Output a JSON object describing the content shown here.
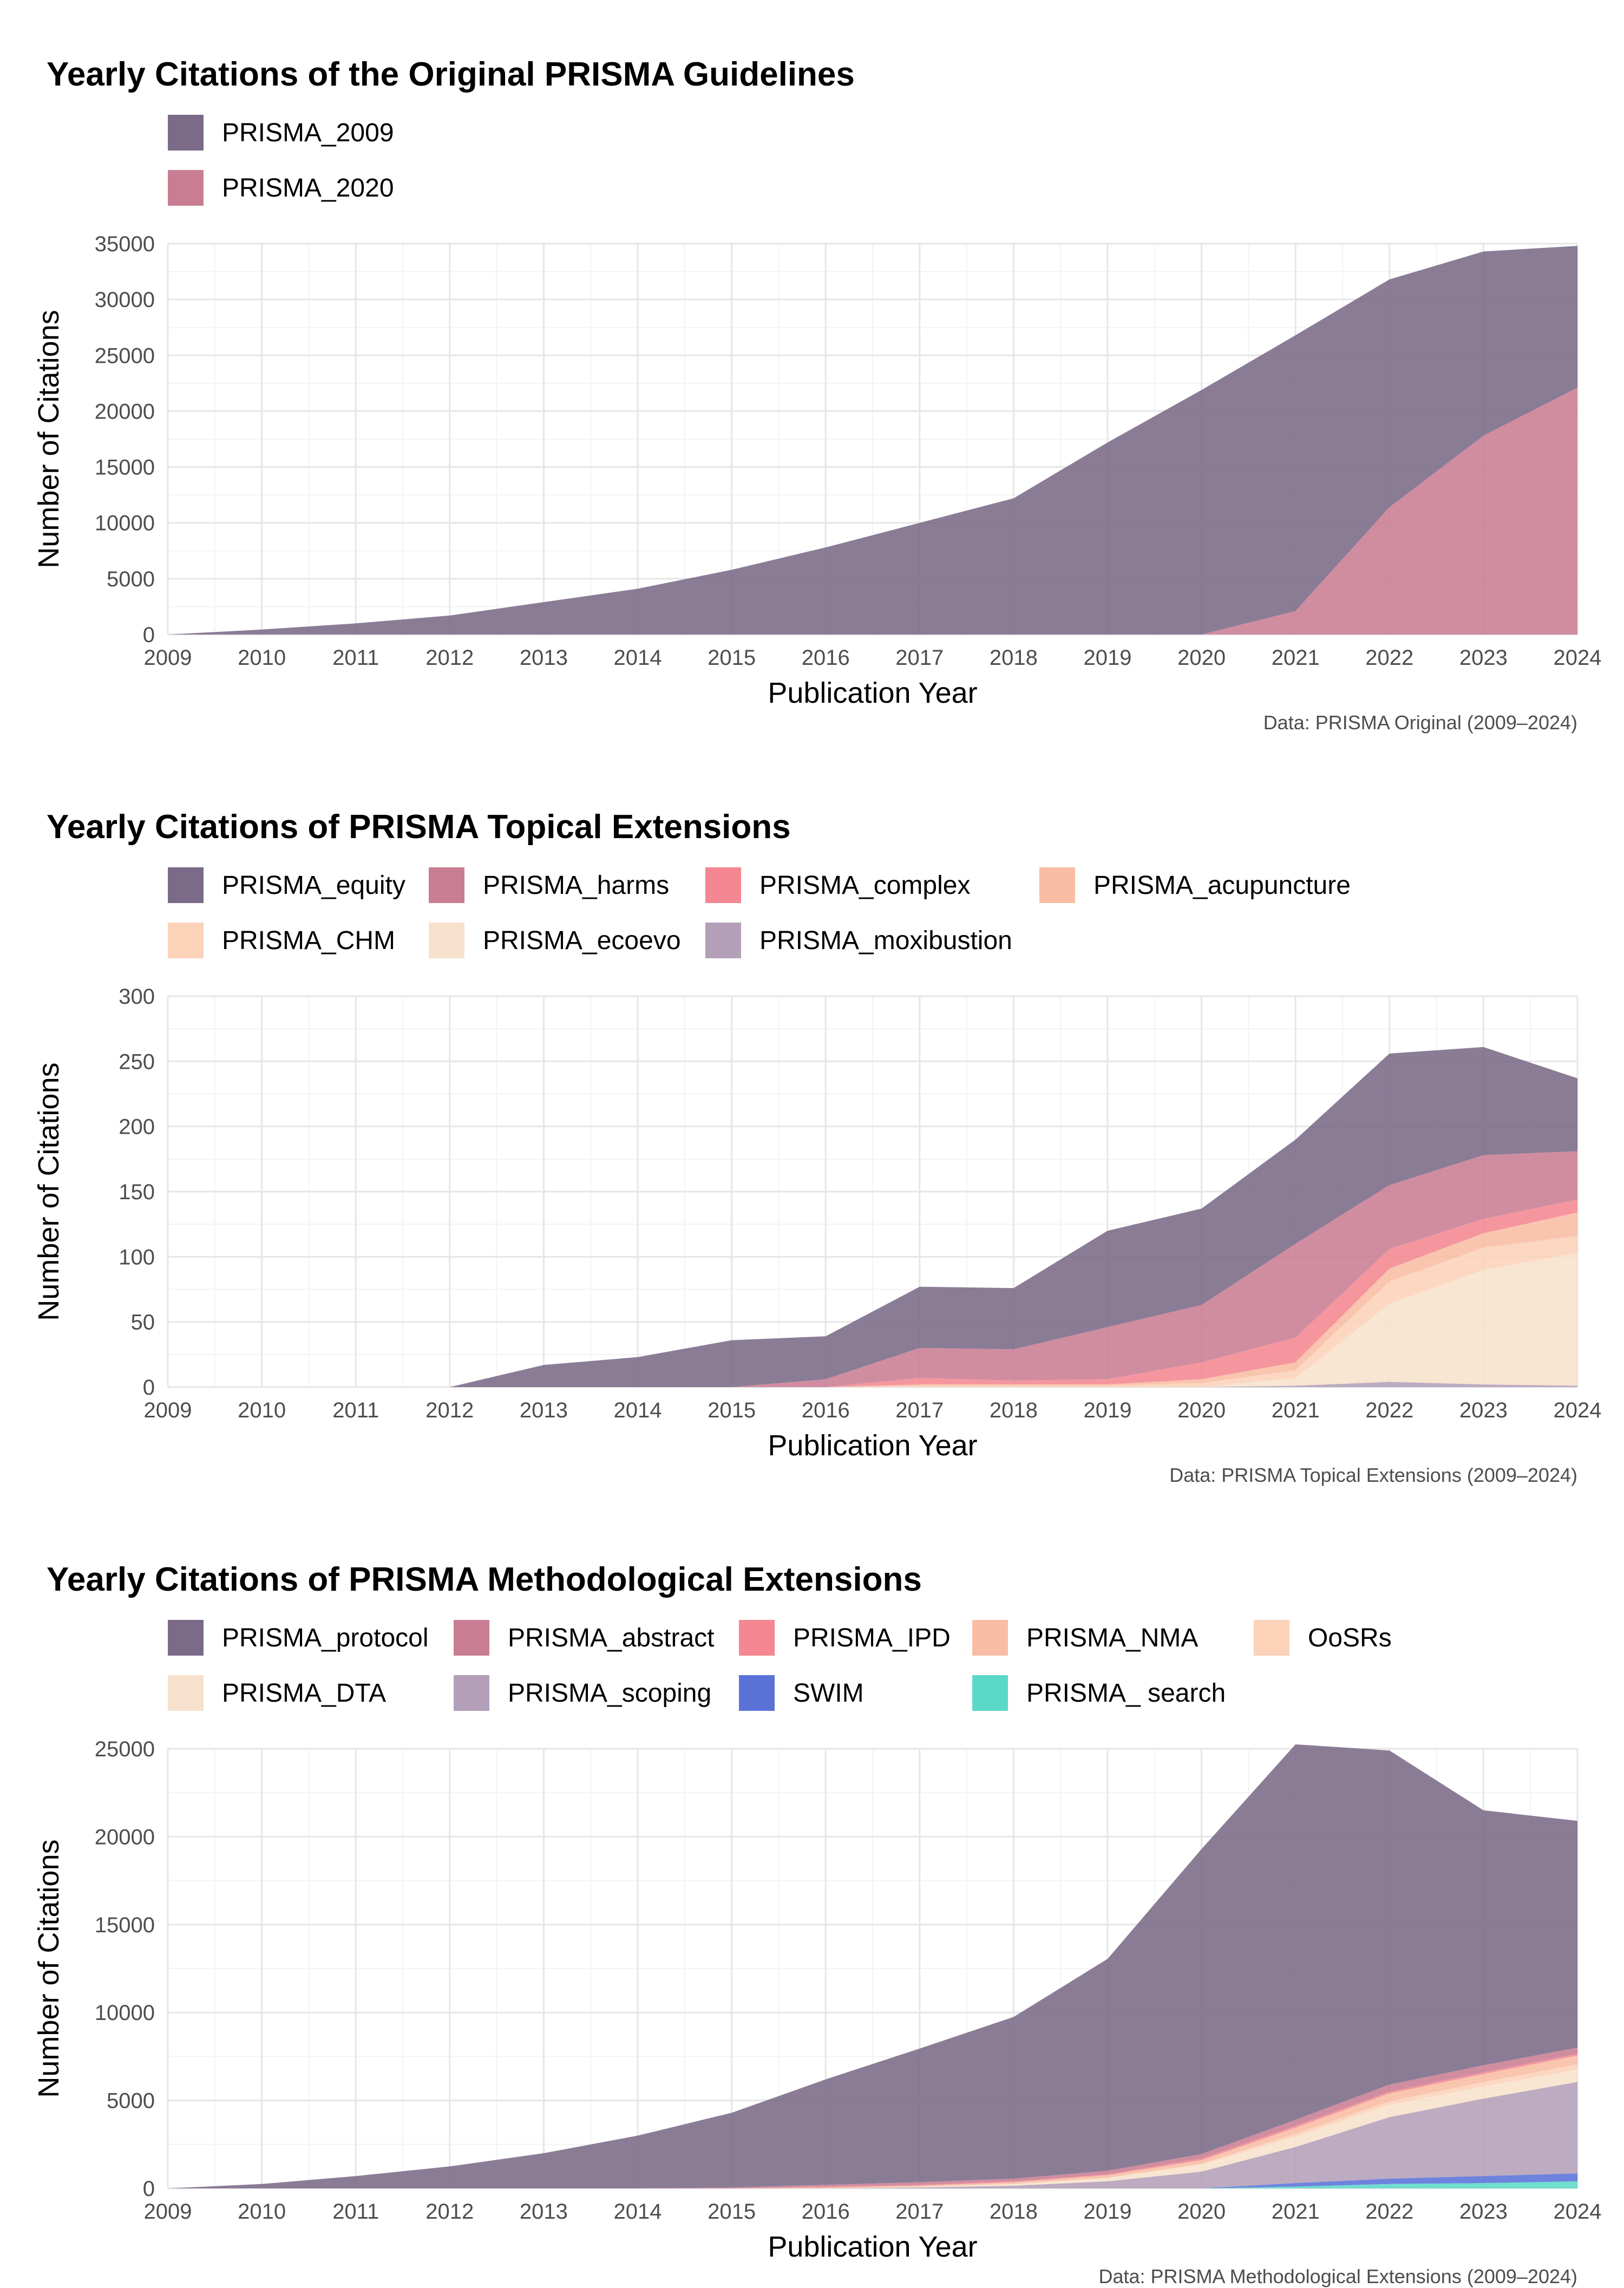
{
  "colors": {
    "PRISMA_2009": "#7b6a88",
    "PRISMA_2020": "#c97d93",
    "PRISMA_equity": "#7b6a88",
    "PRISMA_harms": "#c97d93",
    "PRISMA_complex": "#f48792",
    "PRISMA_acupuncture": "#f8bda4",
    "PRISMA_CHM": "#fcd2b9",
    "PRISMA_ecoevo": "#f7e1cc",
    "PRISMA_moxibustion": "#b39fb8",
    "PRISMA_protocol": "#7b6a88",
    "PRISMA_abstract": "#c97d93",
    "PRISMA_IPD": "#f48792",
    "PRISMA_NMA": "#f8bda4",
    "OoSRs": "#fcd2b9",
    "PRISMA_DTA": "#f7e1cc",
    "PRISMA_scoping": "#b39fb8",
    "SWIM": "#5a72d8",
    "PRISMA_ search": "#5cd8c8"
  },
  "chart_data": [
    {
      "type": "area",
      "stacked": true,
      "title": "Yearly Citations of the Original PRISMA Guidelines",
      "xlabel": "Publication Year",
      "ylabel": "Number of Citations",
      "caption": "Data: PRISMA Original (2009–2024)",
      "x": [
        2009,
        2010,
        2011,
        2012,
        2013,
        2014,
        2015,
        2016,
        2017,
        2018,
        2019,
        2020,
        2021,
        2022,
        2023,
        2024
      ],
      "ylim": [
        0,
        35000
      ],
      "yticks": [
        0,
        5000,
        10000,
        15000,
        20000,
        25000,
        30000,
        35000
      ],
      "legend_position": "top",
      "series": [
        {
          "name": "PRISMA_2009",
          "values": [
            0,
            450,
            1000,
            1700,
            2900,
            4100,
            5800,
            7800,
            10000,
            12200,
            17200,
            21900,
            24700,
            20400,
            16500,
            12700
          ]
        },
        {
          "name": "PRISMA_2020",
          "values": [
            0,
            0,
            0,
            0,
            0,
            0,
            0,
            0,
            0,
            0,
            0,
            0,
            2100,
            11400,
            17800,
            22100
          ]
        }
      ]
    },
    {
      "type": "area",
      "stacked": true,
      "title": "Yearly Citations of PRISMA Topical Extensions",
      "xlabel": "Publication Year",
      "ylabel": "Number of Citations",
      "caption": "Data: PRISMA Topical Extensions (2009–2024)",
      "x": [
        2009,
        2010,
        2011,
        2012,
        2013,
        2014,
        2015,
        2016,
        2017,
        2018,
        2019,
        2020,
        2021,
        2022,
        2023,
        2024
      ],
      "ylim": [
        0,
        300
      ],
      "yticks": [
        0,
        50,
        100,
        150,
        200,
        250,
        300
      ],
      "legend_position": "top",
      "series": [
        {
          "name": "PRISMA_equity",
          "values": [
            0,
            0,
            0,
            0,
            17,
            23,
            36,
            33,
            47,
            47,
            74,
            74,
            80,
            101,
            83,
            56
          ]
        },
        {
          "name": "PRISMA_harms",
          "values": [
            0,
            0,
            0,
            0,
            0,
            0,
            0,
            6,
            23,
            24,
            40,
            44,
            72,
            49,
            49,
            37
          ]
        },
        {
          "name": "PRISMA_complex",
          "values": [
            0,
            0,
            0,
            0,
            0,
            0,
            0,
            0,
            5,
            3,
            4,
            13,
            19,
            15,
            11,
            10
          ]
        },
        {
          "name": "PRISMA_acupuncture",
          "values": [
            0,
            0,
            0,
            0,
            0,
            0,
            0,
            0,
            1,
            1,
            1,
            3,
            6,
            10,
            11,
            18
          ]
        },
        {
          "name": "PRISMA_CHM",
          "values": [
            0,
            0,
            0,
            0,
            0,
            0,
            0,
            0,
            1,
            1,
            1,
            3,
            6,
            17,
            17,
            13
          ]
        },
        {
          "name": "PRISMA_ecoevo",
          "values": [
            0,
            0,
            0,
            0,
            0,
            0,
            0,
            0,
            0,
            0,
            0,
            0,
            6,
            60,
            88,
            102
          ]
        },
        {
          "name": "PRISMA_moxibustion",
          "values": [
            0,
            0,
            0,
            0,
            0,
            0,
            0,
            0,
            0,
            0,
            0,
            0,
            1,
            4,
            2,
            1
          ]
        }
      ]
    },
    {
      "type": "area",
      "stacked": true,
      "title": "Yearly Citations of PRISMA Methodological Extensions",
      "xlabel": "Publication Year",
      "ylabel": "Number of Citations",
      "caption": "Data: PRISMA Methodological Extensions (2009–2024)",
      "x": [
        2009,
        2010,
        2011,
        2012,
        2013,
        2014,
        2015,
        2016,
        2017,
        2018,
        2019,
        2020,
        2021,
        2022,
        2023,
        2024
      ],
      "ylim": [
        0,
        25000
      ],
      "yticks": [
        0,
        5000,
        10000,
        15000,
        20000,
        25000
      ],
      "legend_position": "top",
      "series": [
        {
          "name": "PRISMA_protocol",
          "values": [
            0,
            250,
            700,
            1250,
            2000,
            3000,
            4250,
            6000,
            7600,
            9200,
            12050,
            17350,
            21350,
            19000,
            14500,
            12900
          ]
        },
        {
          "name": "PRISMA_abstract",
          "values": [
            0,
            0,
            0,
            0,
            0,
            0,
            50,
            100,
            150,
            150,
            200,
            250,
            350,
            400,
            400,
            350
          ]
        },
        {
          "name": "PRISMA_IPD",
          "values": [
            0,
            0,
            0,
            0,
            0,
            0,
            0,
            50,
            50,
            50,
            50,
            100,
            100,
            100,
            100,
            100
          ]
        },
        {
          "name": "PRISMA_NMA",
          "values": [
            0,
            0,
            0,
            0,
            0,
            0,
            0,
            50,
            50,
            100,
            150,
            200,
            350,
            450,
            450,
            500
          ]
        },
        {
          "name": "OoSRs",
          "values": [
            0,
            0,
            0,
            0,
            0,
            0,
            0,
            0,
            0,
            0,
            0,
            50,
            150,
            200,
            250,
            300
          ]
        },
        {
          "name": "PRISMA_DTA",
          "values": [
            0,
            0,
            0,
            0,
            0,
            0,
            0,
            0,
            50,
            100,
            200,
            400,
            600,
            700,
            700,
            700
          ]
        },
        {
          "name": "PRISMA_scoping",
          "values": [
            0,
            0,
            0,
            0,
            0,
            0,
            0,
            0,
            50,
            150,
            400,
            950,
            2050,
            3500,
            4400,
            5200
          ]
        },
        {
          "name": "SWIM",
          "values": [
            0,
            0,
            0,
            0,
            0,
            0,
            0,
            0,
            0,
            0,
            0,
            0,
            200,
            300,
            400,
            450
          ]
        },
        {
          "name": "PRISMA_ search",
          "values": [
            0,
            0,
            0,
            0,
            0,
            0,
            0,
            0,
            0,
            0,
            0,
            0,
            100,
            250,
            300,
            400
          ]
        }
      ]
    }
  ]
}
